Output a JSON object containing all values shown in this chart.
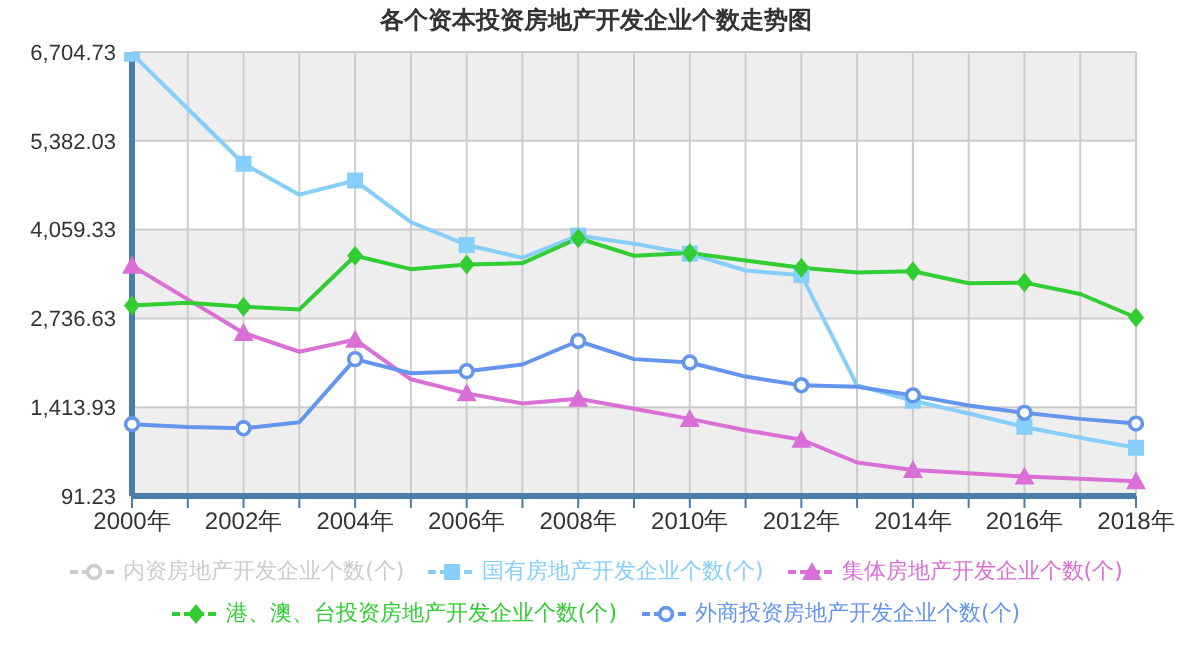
{
  "chart_data": {
    "type": "line",
    "title": "各个资本投资房地产开发企业个数走势图",
    "categories": [
      "2000年",
      null,
      "2002年",
      null,
      "2004年",
      null,
      "2006年",
      null,
      "2008年",
      null,
      "2010年",
      null,
      "2012年",
      null,
      "2014年",
      null,
      "2016年",
      null,
      "2018年"
    ],
    "series": [
      {
        "name": "内资房地产开发企业个数(个)",
        "color": "#cccccc",
        "marker": "circle",
        "values": [
          null,
          null,
          null,
          null,
          null,
          null,
          null,
          null,
          null,
          null,
          null,
          null,
          null,
          null,
          null,
          null,
          null,
          null,
          null
        ]
      },
      {
        "name": "国有房地产开发企业个数(个)",
        "color": "#87cefa",
        "marker": "square",
        "values": [
          6680,
          5860,
          5040,
          4580,
          4790,
          4170,
          3830,
          3640,
          3970,
          3850,
          3700,
          3450,
          3380,
          1740,
          1510,
          1320,
          1120,
          960,
          810
        ]
      },
      {
        "name": "集体房地产开发企业个数(个)",
        "color": "#da70d6",
        "marker": "triangle",
        "values": [
          3520,
          3020,
          2520,
          2240,
          2420,
          1830,
          1620,
          1470,
          1540,
          1390,
          1240,
          1070,
          930,
          590,
          480,
          430,
          380,
          350,
          310
        ]
      },
      {
        "name": "港、澳、台投资房地产开发企业个数(个)",
        "color": "#32cd32",
        "marker": "diamond",
        "values": [
          2930,
          2970,
          2910,
          2870,
          3670,
          3470,
          3540,
          3560,
          3930,
          3670,
          3710,
          3600,
          3490,
          3420,
          3440,
          3260,
          3270,
          3100,
          2750
        ]
      },
      {
        "name": "外商投资房地产开发企业个数(个)",
        "color": "#6495ed",
        "marker": "circle",
        "values": [
          1160,
          1120,
          1100,
          1190,
          2130,
          1920,
          1950,
          2050,
          2400,
          2130,
          2080,
          1870,
          1740,
          1720,
          1590,
          1440,
          1330,
          1240,
          1170
        ]
      }
    ],
    "ylim": [
      91.23,
      6704.73
    ],
    "yticks": [
      {
        "value": 91.23,
        "label": "91.23"
      },
      {
        "value": 1413.93,
        "label": "1,413.93"
      },
      {
        "value": 2736.63,
        "label": "2,736.63"
      },
      {
        "value": 4059.33,
        "label": "4,059.33"
      },
      {
        "value": 5382.03,
        "label": "5,382.03"
      },
      {
        "value": 6704.73,
        "label": "6,704.73"
      }
    ],
    "grid": true,
    "legend": "bottom",
    "line_style": "solid"
  }
}
